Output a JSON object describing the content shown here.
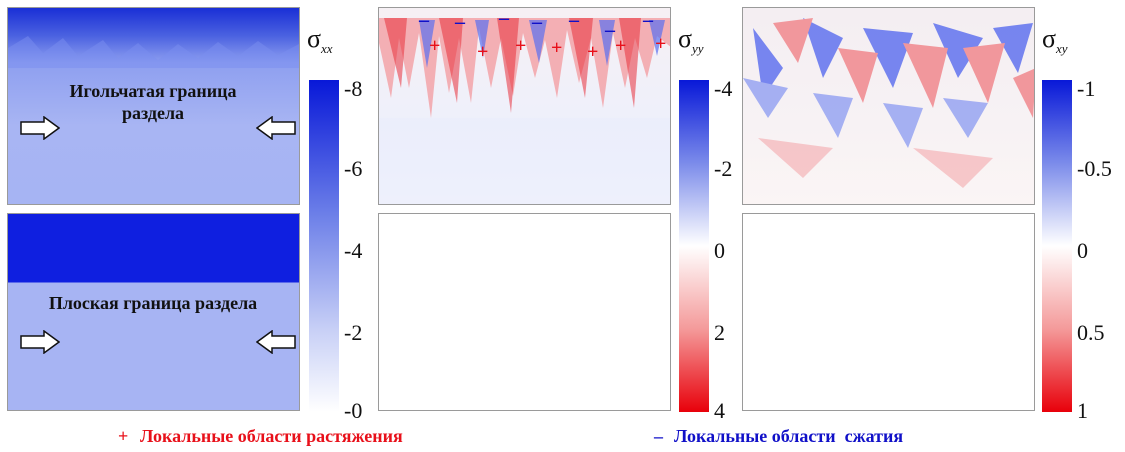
{
  "colorbars": {
    "xx": {
      "symbol": "σ",
      "sub": "xx",
      "ticks": [
        "-8",
        "-6",
        "-4",
        "-2",
        "-0"
      ]
    },
    "yy": {
      "symbol": "σ",
      "sub": "yy",
      "ticks": [
        "-4",
        "-2",
        "0",
        "2",
        "4"
      ]
    },
    "xy": {
      "symbol": "σ",
      "sub": "xy",
      "ticks": [
        "-1",
        "-0.5",
        "0",
        "0.5",
        "1"
      ]
    }
  },
  "panels": {
    "needle_label": "Игольчатая граница раздела",
    "flat_label": "Плоская граница раздела"
  },
  "legend": {
    "plus_symbol": "+",
    "plus_text": "Локальные области растяжения",
    "minus_symbol": "–",
    "minus_text": "Локальные области  сжатия"
  },
  "colors": {
    "tension": "#e8101a",
    "compression": "#1010c8"
  }
}
